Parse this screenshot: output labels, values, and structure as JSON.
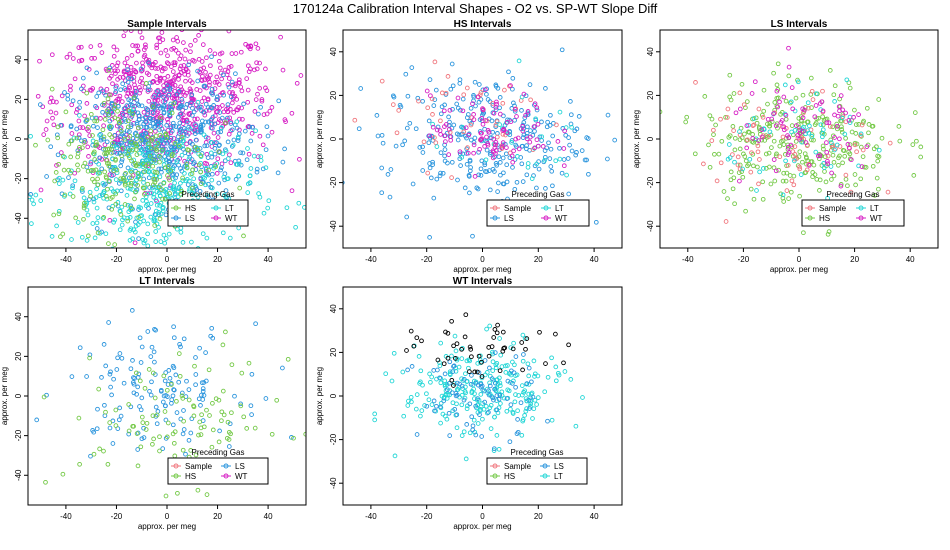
{
  "title": "170124a   Calibration Interval Shapes - O2 vs. SP-WT Slope Diff",
  "colors": {
    "Sample": "#f0767d",
    "HS": "#74c947",
    "LS": "#2b95dd",
    "LT": "#22d6d6",
    "WT": "#d61fc4",
    "Black": "#000000"
  },
  "legend_title": "Preceding Gas",
  "chart_data": [
    {
      "type": "scatter",
      "title": "Sample Intervals",
      "xlabel": "approx. per meg",
      "ylabel": "approx. per meg",
      "xlim": [
        -55,
        55
      ],
      "ylim": [
        -55,
        55
      ],
      "xticks": [
        -40,
        -20,
        0,
        20,
        40
      ],
      "yticks": [
        -40,
        -20,
        0,
        20,
        40
      ],
      "legend": [
        "HS",
        "LS",
        "LT",
        "WT"
      ],
      "legend_cols": [
        [
          "HS",
          "LS"
        ],
        [
          "LT",
          "WT"
        ]
      ],
      "series": [
        {
          "name": "WT",
          "n": 700,
          "cx": 0,
          "cy": 20,
          "sx": 22,
          "sy": 18
        },
        {
          "name": "LS",
          "n": 550,
          "cx": -3,
          "cy": 0,
          "sx": 18,
          "sy": 16
        },
        {
          "name": "LT",
          "n": 400,
          "cx": -5,
          "cy": -28,
          "sx": 20,
          "sy": 16
        },
        {
          "name": "HS",
          "n": 250,
          "cx": -15,
          "cy": -10,
          "sx": 16,
          "sy": 18
        }
      ]
    },
    {
      "type": "scatter",
      "title": "HS Intervals",
      "xlabel": "approx. per meg",
      "ylabel": "approx. per meg",
      "xlim": [
        -50,
        50
      ],
      "ylim": [
        -50,
        50
      ],
      "xticks": [
        -40,
        -20,
        0,
        20,
        40
      ],
      "yticks": [
        -40,
        -20,
        0,
        20,
        40
      ],
      "legend": [
        "Sample",
        "LS",
        "LT",
        "WT"
      ],
      "legend_cols": [
        [
          "Sample",
          "LS"
        ],
        [
          "LT",
          "WT"
        ]
      ],
      "series": [
        {
          "name": "LS",
          "n": 320,
          "cx": 0,
          "cy": 0,
          "sx": 18,
          "sy": 15
        },
        {
          "name": "Sample",
          "n": 50,
          "cx": -5,
          "cy": 10,
          "sx": 18,
          "sy": 12
        },
        {
          "name": "LT",
          "n": 30,
          "cx": 8,
          "cy": 0,
          "sx": 14,
          "sy": 10
        },
        {
          "name": "WT",
          "n": 100,
          "cx": 3,
          "cy": 3,
          "sx": 11,
          "sy": 9
        }
      ]
    },
    {
      "type": "scatter",
      "title": "LS Intervals",
      "xlabel": "approx. per meg",
      "ylabel": "approx. per meg",
      "xlim": [
        -50,
        50
      ],
      "ylim": [
        -50,
        50
      ],
      "xticks": [
        -40,
        -20,
        0,
        20,
        40
      ],
      "yticks": [
        -40,
        -20,
        0,
        20,
        40
      ],
      "legend": [
        "Sample",
        "HS",
        "LT",
        "WT"
      ],
      "legend_cols": [
        [
          "Sample",
          "HS"
        ],
        [
          "LT",
          "WT"
        ]
      ],
      "series": [
        {
          "name": "HS",
          "n": 300,
          "cx": 0,
          "cy": 0,
          "sx": 17,
          "sy": 14
        },
        {
          "name": "Sample",
          "n": 80,
          "cx": -5,
          "cy": -5,
          "sx": 16,
          "sy": 14
        },
        {
          "name": "LT",
          "n": 60,
          "cx": 5,
          "cy": 0,
          "sx": 15,
          "sy": 10
        },
        {
          "name": "WT",
          "n": 80,
          "cx": 2,
          "cy": 2,
          "sx": 14,
          "sy": 12
        }
      ]
    },
    {
      "type": "scatter",
      "title": "LT Intervals",
      "xlabel": "approx. per meg",
      "ylabel": "approx. per meg",
      "xlim": [
        -55,
        55
      ],
      "ylim": [
        -55,
        55
      ],
      "xticks": [
        -40,
        -20,
        0,
        20,
        40
      ],
      "yticks": [
        -40,
        -20,
        0,
        20,
        40
      ],
      "legend": [
        "Sample",
        "HS",
        "LS",
        "WT"
      ],
      "legend_cols": [
        [
          "Sample",
          "HS"
        ],
        [
          "LS",
          "WT"
        ]
      ],
      "series": [
        {
          "name": "LS",
          "n": 150,
          "cx": -5,
          "cy": 5,
          "sx": 17,
          "sy": 15
        },
        {
          "name": "HS",
          "n": 110,
          "cx": 5,
          "cy": -12,
          "sx": 22,
          "sy": 16
        }
      ]
    },
    {
      "type": "scatter",
      "title": "WT Intervals",
      "xlabel": "approx. per meg",
      "ylabel": "approx. per meg",
      "xlim": [
        -50,
        50
      ],
      "ylim": [
        -50,
        50
      ],
      "xticks": [
        -40,
        -20,
        0,
        20,
        40
      ],
      "yticks": [
        -40,
        -20,
        0,
        20,
        40
      ],
      "legend": [
        "Sample",
        "HS",
        "LS",
        "LT"
      ],
      "legend_cols": [
        [
          "Sample",
          "HS"
        ],
        [
          "LS",
          "LT"
        ]
      ],
      "series": [
        {
          "name": "LT",
          "n": 260,
          "cx": 0,
          "cy": 2,
          "sx": 14,
          "sy": 11
        },
        {
          "name": "LS",
          "n": 90,
          "cx": -2,
          "cy": 0,
          "sx": 11,
          "sy": 10
        },
        {
          "name": "Black",
          "n": 50,
          "cx": 0,
          "cy": 20,
          "sx": 12,
          "sy": 7
        }
      ]
    }
  ]
}
